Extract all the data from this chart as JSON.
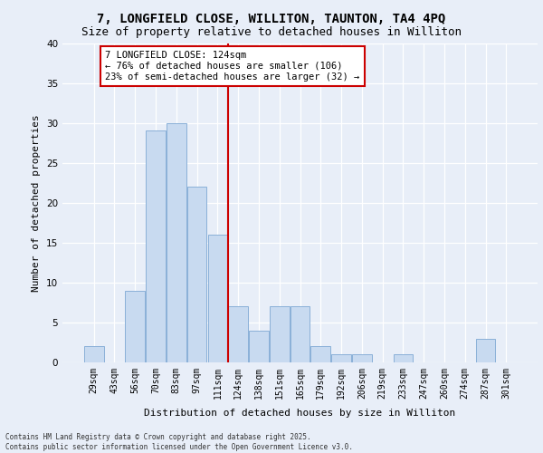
{
  "title_line1": "7, LONGFIELD CLOSE, WILLITON, TAUNTON, TA4 4PQ",
  "title_line2": "Size of property relative to detached houses in Williton",
  "xlabel": "Distribution of detached houses by size in Williton",
  "ylabel": "Number of detached properties",
  "categories": [
    "29sqm",
    "43sqm",
    "56sqm",
    "70sqm",
    "83sqm",
    "97sqm",
    "111sqm",
    "124sqm",
    "138sqm",
    "151sqm",
    "165sqm",
    "179sqm",
    "192sqm",
    "206sqm",
    "219sqm",
    "233sqm",
    "247sqm",
    "260sqm",
    "274sqm",
    "287sqm",
    "301sqm"
  ],
  "values": [
    2,
    0,
    9,
    29,
    30,
    22,
    16,
    7,
    4,
    7,
    7,
    2,
    1,
    1,
    0,
    1,
    0,
    0,
    0,
    3,
    0
  ],
  "bar_color": "#c8daf0",
  "bar_edge_color": "#8ab0d8",
  "vline_index": 7,
  "vline_color": "#cc0000",
  "annotation_line1": "7 LONGFIELD CLOSE: 124sqm",
  "annotation_line2": "← 76% of detached houses are smaller (106)",
  "annotation_line3": "23% of semi-detached houses are larger (32) →",
  "annotation_box_facecolor": "#ffffff",
  "annotation_box_edgecolor": "#cc0000",
  "ylim": [
    0,
    40
  ],
  "yticks": [
    0,
    5,
    10,
    15,
    20,
    25,
    30,
    35,
    40
  ],
  "bg_color": "#e8eef8",
  "grid_color": "#ffffff",
  "footer": "Contains HM Land Registry data © Crown copyright and database right 2025.\nContains public sector information licensed under the Open Government Licence v3.0.",
  "title_fontsize": 10,
  "subtitle_fontsize": 9,
  "ylabel_fontsize": 8,
  "xlabel_fontsize": 8,
  "tick_fontsize": 7,
  "annotation_fontsize": 7.5,
  "footer_fontsize": 5.5
}
